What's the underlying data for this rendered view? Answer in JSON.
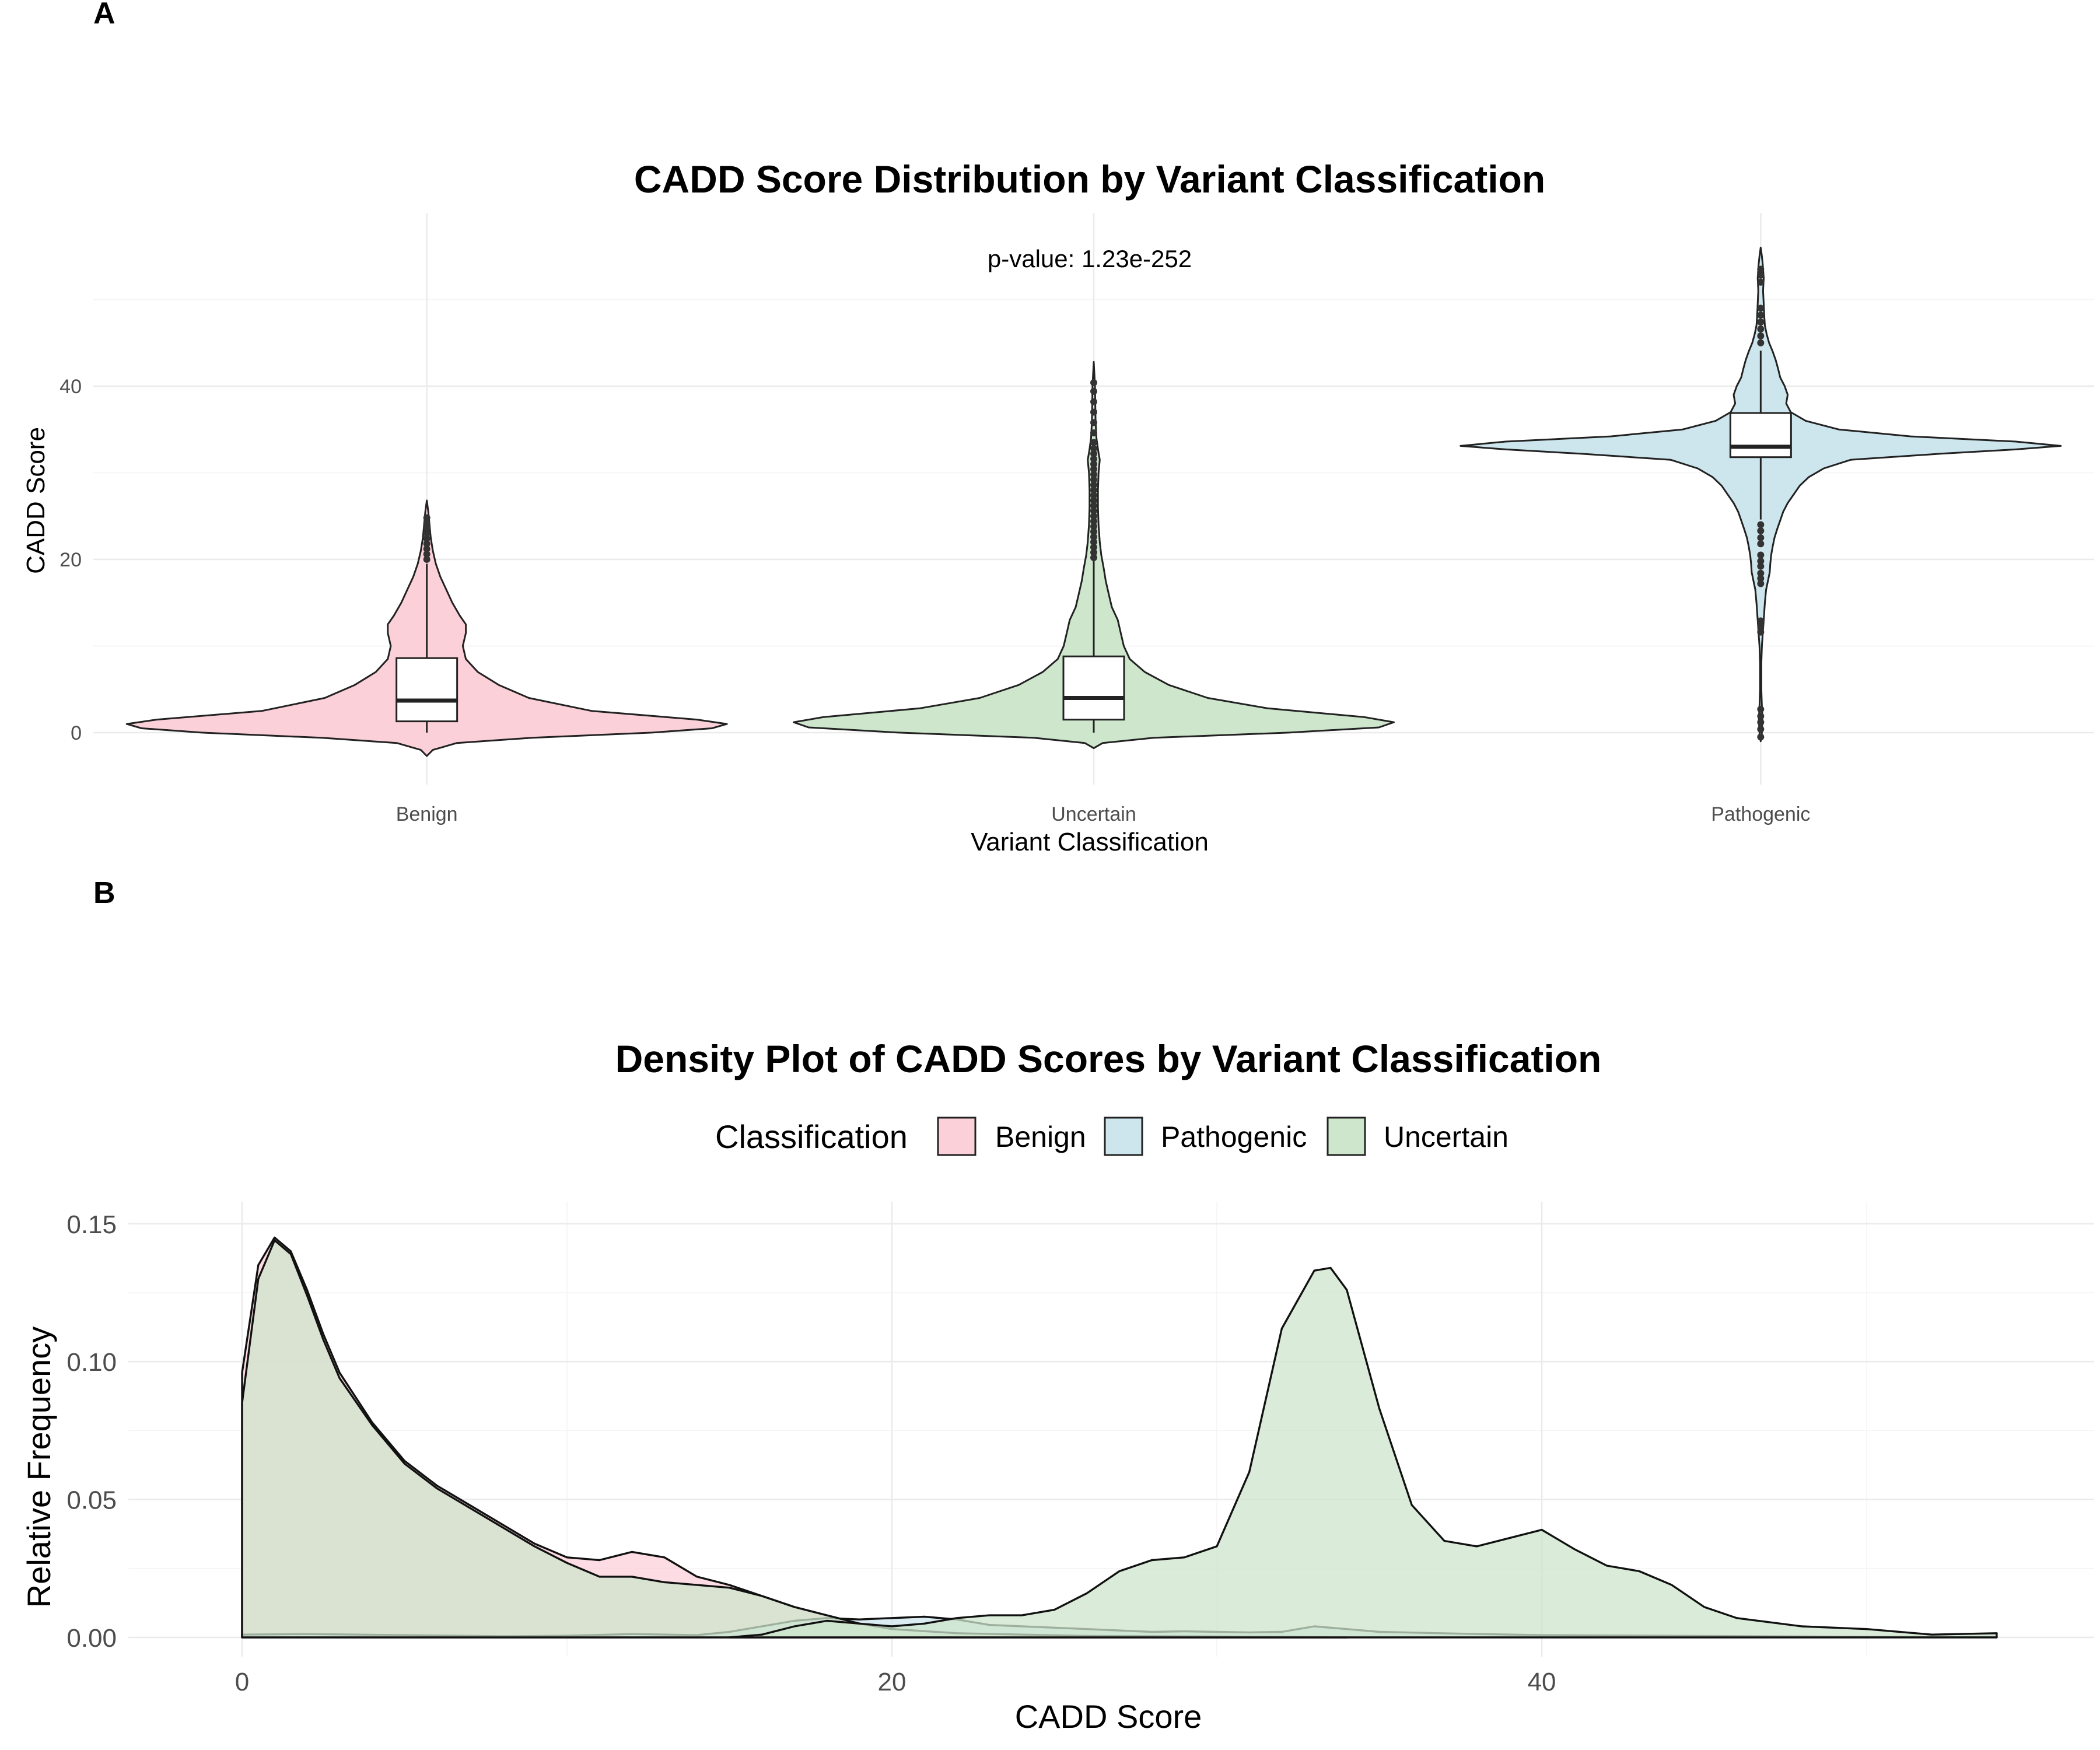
{
  "panel_tags": {
    "a": "A",
    "b": "B"
  },
  "chart_data": [
    {
      "panel": "A",
      "type": "violin",
      "title": "CADD Score Distribution by Variant Classification",
      "xlabel": "Variant Classification",
      "ylabel": "CADD Score",
      "annotation": "p-value: 1.23e-252",
      "categories": [
        "Benign",
        "Uncertain",
        "Pathogenic"
      ],
      "ylim": [
        -6,
        60
      ],
      "yticks": [
        0,
        20,
        40
      ],
      "colors": {
        "Benign": "#fcd0d9",
        "Uncertain": "#cde6cc",
        "Pathogenic": "#cde6ee"
      },
      "violins": [
        {
          "name": "Benign",
          "y_min": -2.7,
          "y_max": 26.8,
          "profile": [
            [
              -2.7,
              0
            ],
            [
              -2,
              0.02
            ],
            [
              -1.2,
              0.1
            ],
            [
              -0.6,
              0.35
            ],
            [
              0,
              0.75
            ],
            [
              0.5,
              0.95
            ],
            [
              1,
              1.0
            ],
            [
              1.5,
              0.9
            ],
            [
              2.5,
              0.55
            ],
            [
              4,
              0.34
            ],
            [
              5.5,
              0.24
            ],
            [
              7,
              0.17
            ],
            [
              8.5,
              0.13
            ],
            [
              10,
              0.12
            ],
            [
              11.5,
              0.13
            ],
            [
              12.5,
              0.13
            ],
            [
              13.5,
              0.11
            ],
            [
              15,
              0.085
            ],
            [
              16.5,
              0.065
            ],
            [
              18,
              0.045
            ],
            [
              19.5,
              0.03
            ],
            [
              21,
              0.02
            ],
            [
              22.5,
              0.013
            ],
            [
              24,
              0.009
            ],
            [
              25.5,
              0.005
            ],
            [
              26.8,
              0
            ]
          ],
          "box": {
            "q1": 1.3,
            "median": 3.7,
            "q3": 8.6,
            "whisker_low": 0,
            "whisker_high": 19.5
          },
          "outliers": [
            20.0,
            20.6,
            21.2,
            21.8,
            22.4,
            23.0,
            23.6,
            24.2,
            24.8
          ]
        },
        {
          "name": "Uncertain",
          "y_min": -1.8,
          "y_max": 42.8,
          "profile": [
            [
              -1.8,
              0
            ],
            [
              -1.2,
              0.03
            ],
            [
              -0.6,
              0.2
            ],
            [
              0,
              0.65
            ],
            [
              0.6,
              0.95
            ],
            [
              1.2,
              1.0
            ],
            [
              1.8,
              0.9
            ],
            [
              2.8,
              0.58
            ],
            [
              4,
              0.38
            ],
            [
              5.5,
              0.25
            ],
            [
              7,
              0.17
            ],
            [
              8.5,
              0.12
            ],
            [
              10,
              0.1
            ],
            [
              11.5,
              0.09
            ],
            [
              13,
              0.08
            ],
            [
              14.5,
              0.06
            ],
            [
              16,
              0.05
            ],
            [
              17.5,
              0.04
            ],
            [
              19,
              0.033
            ],
            [
              20.5,
              0.025
            ],
            [
              22,
              0.02
            ],
            [
              24,
              0.016
            ],
            [
              26,
              0.014
            ],
            [
              28,
              0.014
            ],
            [
              30,
              0.016
            ],
            [
              31.5,
              0.02
            ],
            [
              32.5,
              0.015
            ],
            [
              34,
              0.009
            ],
            [
              36,
              0.006
            ],
            [
              38,
              0.005
            ],
            [
              40,
              0.004
            ],
            [
              41.5,
              0.002
            ],
            [
              42.8,
              0
            ]
          ],
          "box": {
            "q1": 1.5,
            "median": 4.0,
            "q3": 8.8,
            "whisker_low": 0,
            "whisker_high": 19.8
          },
          "outliers": [
            20.2,
            20.8,
            21.4,
            22.0,
            22.6,
            23.2,
            23.8,
            24.4,
            25.0,
            25.6,
            26.2,
            26.8,
            27.4,
            28.0,
            28.6,
            29.2,
            29.8,
            30.4,
            31.0,
            31.6,
            32.2,
            32.8,
            33.5,
            34.6,
            35.8,
            37.0,
            38.2,
            39.4,
            40.4
          ]
        },
        {
          "name": "Pathogenic",
          "y_min": -1.0,
          "y_max": 56.0,
          "profile": [
            [
              -1,
              0
            ],
            [
              0,
              0.004
            ],
            [
              1.5,
              0.006
            ],
            [
              3,
              0.004
            ],
            [
              5,
              0.002
            ],
            [
              8,
              0.002
            ],
            [
              10,
              0.004
            ],
            [
              11.5,
              0.007
            ],
            [
              13,
              0.01
            ],
            [
              15,
              0.014
            ],
            [
              16.5,
              0.018
            ],
            [
              17.5,
              0.024
            ],
            [
              18.5,
              0.03
            ],
            [
              19.5,
              0.032
            ],
            [
              20.5,
              0.035
            ],
            [
              21.5,
              0.04
            ],
            [
              22.5,
              0.046
            ],
            [
              23.5,
              0.055
            ],
            [
              24.5,
              0.065
            ],
            [
              25.5,
              0.075
            ],
            [
              26.5,
              0.09
            ],
            [
              27.5,
              0.11
            ],
            [
              28.5,
              0.13
            ],
            [
              29.5,
              0.16
            ],
            [
              30.5,
              0.21
            ],
            [
              31.5,
              0.3
            ],
            [
              32.2,
              0.6
            ],
            [
              32.7,
              0.85
            ],
            [
              33.1,
              1.0
            ],
            [
              33.6,
              0.85
            ],
            [
              34.2,
              0.5
            ],
            [
              35,
              0.26
            ],
            [
              36,
              0.15
            ],
            [
              37,
              0.1
            ],
            [
              38,
              0.085
            ],
            [
              39,
              0.09
            ],
            [
              40,
              0.08
            ],
            [
              41,
              0.065
            ],
            [
              42,
              0.058
            ],
            [
              43,
              0.05
            ],
            [
              44,
              0.04
            ],
            [
              45,
              0.028
            ],
            [
              46,
              0.02
            ],
            [
              47,
              0.014
            ],
            [
              48,
              0.012
            ],
            [
              49.5,
              0.01
            ],
            [
              51,
              0.008
            ],
            [
              52.5,
              0.01
            ],
            [
              54,
              0.007
            ],
            [
              55,
              0.004
            ],
            [
              56,
              0
            ]
          ],
          "box": {
            "q1": 31.8,
            "median": 33.0,
            "q3": 36.9,
            "whisker_low": 24.6,
            "whisker_high": 44.1
          },
          "outliers": [
            -0.5,
            0.4,
            1.2,
            1.9,
            2.7,
            11.6,
            12.3,
            12.9,
            17.2,
            17.8,
            18.4,
            19.2,
            19.8,
            20.5,
            21.8,
            22.5,
            23.3,
            24.0,
            45.0,
            45.8,
            46.6,
            47.4,
            48.2,
            49.0,
            52.0,
            52.8,
            53.5
          ]
        }
      ]
    },
    {
      "panel": "B",
      "type": "area",
      "title": "Density Plot of CADD Scores by Variant Classification",
      "xlabel": "CADD Score",
      "ylabel": "Relative Frequency",
      "xlim": [
        -3.5,
        57
      ],
      "ylim": [
        -0.007,
        0.158
      ],
      "xticks": [
        0,
        20,
        40
      ],
      "yticks": [
        0.0,
        0.05,
        0.1,
        0.15
      ],
      "ytick_labels": [
        "0.00",
        "0.05",
        "0.10",
        "0.15"
      ],
      "legend": {
        "title": "Classification",
        "position": "top",
        "entries": [
          {
            "name": "Benign",
            "color": "#fcd0d9"
          },
          {
            "name": "Pathogenic",
            "color": "#cde6ee"
          },
          {
            "name": "Uncertain",
            "color": "#cde6cc"
          }
        ]
      },
      "series": [
        {
          "name": "Benign",
          "color": "#fcd0d9",
          "x": [
            0,
            0.5,
            1,
            1.5,
            2,
            2.5,
            3,
            4,
            5,
            6,
            7,
            8,
            9,
            10,
            11,
            12,
            13,
            14,
            15,
            16,
            17,
            18,
            19,
            20,
            22,
            24,
            26,
            28,
            30,
            32,
            34
          ],
          "y": [
            0.096,
            0.135,
            0.145,
            0.14,
            0.126,
            0.11,
            0.096,
            0.078,
            0.064,
            0.055,
            0.048,
            0.041,
            0.034,
            0.029,
            0.028,
            0.031,
            0.029,
            0.022,
            0.019,
            0.015,
            0.011,
            0.008,
            0.005,
            0.003,
            0.0015,
            0.001,
            0.0005,
            0.0004,
            0.0003,
            0.0002,
            0.0
          ]
        },
        {
          "name": "Pathogenic",
          "color": "#cde6ee",
          "x": [
            0,
            2,
            5,
            8,
            10,
            12,
            14,
            15,
            16,
            17,
            18,
            19,
            20,
            21,
            22,
            23,
            24,
            26,
            28,
            29,
            30,
            31,
            32,
            33,
            34,
            35,
            38,
            40,
            45,
            50,
            54
          ],
          "y": [
            0.001,
            0.0012,
            0.0008,
            0.0004,
            0.0006,
            0.0012,
            0.0008,
            0.002,
            0.004,
            0.006,
            0.007,
            0.0065,
            0.007,
            0.0075,
            0.0065,
            0.0045,
            0.004,
            0.003,
            0.002,
            0.0022,
            0.002,
            0.0018,
            0.002,
            0.004,
            0.003,
            0.002,
            0.0012,
            0.0008,
            0.0005,
            0.0002,
            0.0001
          ]
        },
        {
          "name": "Uncertain",
          "color": "#cde6cc",
          "x": [
            0,
            0.5,
            1,
            1.5,
            2,
            2.5,
            3,
            4,
            5,
            6,
            7,
            8,
            9,
            10,
            11,
            12,
            13,
            14,
            15,
            16,
            17,
            18,
            19,
            20,
            22,
            24,
            26,
            28,
            30,
            32,
            34
          ],
          "y": [
            0.085,
            0.13,
            0.144,
            0.139,
            0.124,
            0.108,
            0.094,
            0.077,
            0.063,
            0.054,
            0.047,
            0.04,
            0.033,
            0.027,
            0.022,
            0.022,
            0.02,
            0.019,
            0.018,
            0.015,
            0.011,
            0.008,
            0.005,
            0.003,
            0.0015,
            0.001,
            0.0005,
            0.0004,
            0.0003,
            0.0002,
            0.0
          ]
        },
        {
          "name": "Uncertain",
          "color": "#cde6cc",
          "x": [
            15,
            16,
            17,
            18,
            19,
            20,
            21,
            22,
            23,
            24,
            25,
            26,
            27,
            28,
            29,
            30,
            31,
            32,
            33,
            33.5,
            34,
            35,
            36,
            37,
            38,
            39,
            40,
            41,
            42,
            43,
            44,
            45,
            46,
            48,
            50,
            52,
            54
          ],
          "y": [
            0.0,
            0.001,
            0.004,
            0.006,
            0.005,
            0.004,
            0.005,
            0.007,
            0.008,
            0.008,
            0.01,
            0.016,
            0.024,
            0.028,
            0.029,
            0.033,
            0.06,
            0.112,
            0.133,
            0.134,
            0.126,
            0.083,
            0.048,
            0.035,
            0.033,
            0.036,
            0.039,
            0.032,
            0.026,
            0.024,
            0.019,
            0.011,
            0.007,
            0.004,
            0.003,
            0.001,
            0.0015
          ]
        }
      ]
    }
  ]
}
